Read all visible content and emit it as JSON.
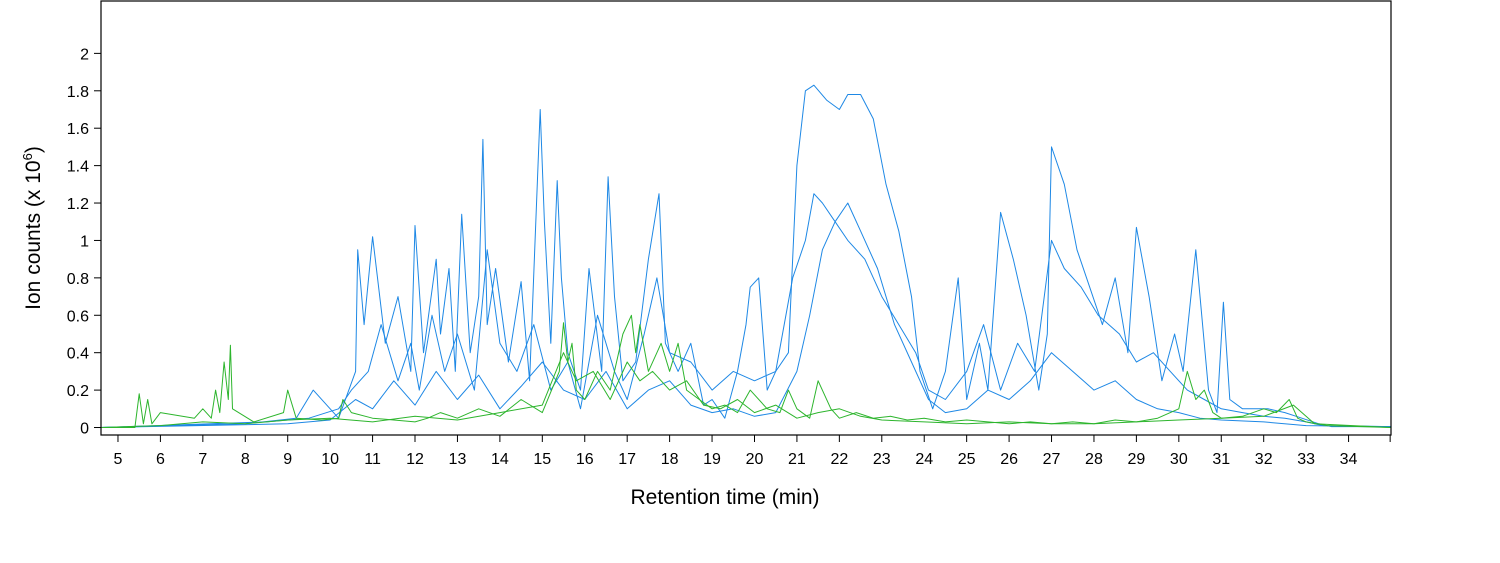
{
  "chart_data": {
    "type": "line",
    "xlabel": "Retention time (min)",
    "ylabel_prefix": "Ion counts (x 10",
    "ylabel_exponent": "6",
    "ylabel_suffix": ")",
    "xlim": [
      4.6,
      35.0
    ],
    "ylim": [
      -0.04,
      2.28
    ],
    "x_ticks": [
      5,
      6,
      7,
      8,
      9,
      10,
      11,
      12,
      13,
      14,
      15,
      16,
      17,
      18,
      19,
      20,
      21,
      22,
      23,
      24,
      25,
      26,
      27,
      28,
      29,
      30,
      31,
      32,
      33,
      34
    ],
    "y_ticks": [
      0,
      0.2,
      0.4,
      0.6,
      0.8,
      1,
      1.2,
      1.4,
      1.6,
      1.8,
      2
    ],
    "y_tick_labels": [
      "0",
      "0.2",
      "0.4",
      "0.6",
      "0.8",
      "1",
      "1.2",
      "1.4",
      "1.6",
      "1.8",
      "2"
    ],
    "grid": false,
    "legend": "none",
    "colors": {
      "blue": "#1e88e5",
      "green": "#2db52d"
    },
    "series": [
      {
        "color": "blue",
        "x": [
          4.6,
          8.0,
          9.2,
          9.6,
          10.2,
          10.6,
          10.65,
          10.8,
          11.0,
          11.3,
          11.6,
          11.9,
          12.0,
          12.2,
          12.5,
          12.6,
          12.8,
          12.95,
          13.1,
          13.3,
          13.5,
          13.6,
          13.7,
          13.9,
          14.2,
          14.5,
          14.7,
          14.95,
          15.05,
          15.2,
          15.35,
          15.45,
          15.6,
          15.9,
          16.1,
          16.4,
          16.55,
          16.7,
          16.9,
          17.2,
          17.5,
          17.75,
          17.9,
          18.2,
          18.5,
          18.8,
          19.0,
          19.3,
          19.6,
          19.8,
          19.9,
          20.1,
          20.3,
          20.5,
          20.8,
          21.0,
          21.2,
          21.4,
          21.7,
          22.0,
          22.2,
          22.5,
          22.8,
          23.1,
          23.4,
          23.7,
          23.9,
          24.2,
          24.5,
          24.8,
          25.0,
          25.3,
          25.5,
          25.8,
          26.1,
          26.4,
          26.7,
          26.9,
          27.0,
          27.3,
          27.6,
          27.9,
          28.2,
          28.5,
          28.8,
          29.0,
          29.3,
          29.6,
          29.9,
          30.1,
          30.4,
          30.7,
          30.9,
          31.05,
          31.2,
          31.5,
          31.8,
          32.1,
          32.5,
          32.9,
          33.3,
          33.6,
          35.0
        ],
        "y": [
          0,
          0.02,
          0.05,
          0.2,
          0.05,
          0.3,
          0.95,
          0.55,
          1.02,
          0.45,
          0.7,
          0.3,
          1.08,
          0.4,
          0.9,
          0.5,
          0.85,
          0.3,
          1.14,
          0.4,
          0.7,
          1.54,
          0.55,
          0.85,
          0.35,
          0.78,
          0.25,
          1.7,
          1.1,
          0.45,
          1.32,
          0.8,
          0.4,
          0.2,
          0.85,
          0.3,
          1.34,
          0.7,
          0.25,
          0.35,
          0.9,
          1.25,
          0.45,
          0.3,
          0.45,
          0.12,
          0.15,
          0.05,
          0.3,
          0.55,
          0.75,
          0.8,
          0.2,
          0.3,
          0.4,
          1.4,
          1.8,
          1.83,
          1.75,
          1.7,
          1.78,
          1.78,
          1.65,
          1.3,
          1.05,
          0.7,
          0.3,
          0.1,
          0.3,
          0.8,
          0.15,
          0.45,
          0.2,
          1.15,
          0.9,
          0.6,
          0.2,
          0.5,
          1.5,
          1.3,
          0.95,
          0.75,
          0.55,
          0.8,
          0.4,
          1.07,
          0.7,
          0.25,
          0.5,
          0.3,
          0.95,
          0.2,
          0.08,
          0.67,
          0.15,
          0.1,
          0.1,
          0.1,
          0.08,
          0.05,
          0.02,
          0.005,
          0.005
        ]
      },
      {
        "color": "blue",
        "x": [
          4.6,
          8.5,
          9.5,
          10.2,
          10.5,
          10.9,
          11.2,
          11.6,
          11.9,
          12.1,
          12.4,
          12.7,
          13.0,
          13.4,
          13.7,
          14.0,
          14.4,
          14.8,
          15.2,
          15.6,
          15.9,
          16.3,
          16.7,
          17.0,
          17.4,
          17.7,
          18.0,
          18.5,
          19.0,
          19.5,
          20.0,
          20.5,
          20.9,
          21.2,
          21.4,
          21.6,
          21.9,
          22.2,
          22.6,
          23.0,
          23.4,
          23.8,
          24.1,
          24.5,
          25.0,
          25.4,
          25.8,
          26.2,
          26.6,
          27.0,
          27.3,
          27.7,
          28.1,
          28.6,
          29.0,
          29.4,
          29.8,
          30.2,
          30.6,
          31.0,
          31.5,
          32.0,
          32.5,
          33.0,
          33.4,
          35.0
        ],
        "y": [
          0,
          0.03,
          0.05,
          0.1,
          0.2,
          0.3,
          0.55,
          0.25,
          0.45,
          0.2,
          0.6,
          0.3,
          0.5,
          0.2,
          0.95,
          0.45,
          0.3,
          0.55,
          0.2,
          0.35,
          0.1,
          0.6,
          0.3,
          0.15,
          0.5,
          0.8,
          0.4,
          0.35,
          0.2,
          0.3,
          0.25,
          0.3,
          0.8,
          1.0,
          1.25,
          1.2,
          1.1,
          1.0,
          0.9,
          0.7,
          0.55,
          0.4,
          0.2,
          0.15,
          0.3,
          0.55,
          0.2,
          0.45,
          0.3,
          1.0,
          0.85,
          0.75,
          0.6,
          0.5,
          0.35,
          0.4,
          0.3,
          0.2,
          0.15,
          0.1,
          0.08,
          0.06,
          0.05,
          0.03,
          0.01,
          0.005
        ]
      },
      {
        "color": "blue",
        "x": [
          4.6,
          9.0,
          10.0,
          10.6,
          11.0,
          11.5,
          12.0,
          12.5,
          13.0,
          13.5,
          14.0,
          14.5,
          15.0,
          15.5,
          16.0,
          16.5,
          17.0,
          17.5,
          18.0,
          18.5,
          19.0,
          19.5,
          20.0,
          20.5,
          21.0,
          21.3,
          21.6,
          21.9,
          22.2,
          22.5,
          22.9,
          23.3,
          23.7,
          24.1,
          24.5,
          25.0,
          25.5,
          26.0,
          26.5,
          27.0,
          27.5,
          28.0,
          28.5,
          29.0,
          29.5,
          30.0,
          30.5,
          31.0,
          32.0,
          33.0,
          35.0
        ],
        "y": [
          0,
          0.02,
          0.04,
          0.15,
          0.1,
          0.25,
          0.12,
          0.3,
          0.15,
          0.28,
          0.1,
          0.22,
          0.35,
          0.2,
          0.15,
          0.3,
          0.1,
          0.2,
          0.25,
          0.12,
          0.08,
          0.1,
          0.06,
          0.08,
          0.3,
          0.6,
          0.95,
          1.1,
          1.2,
          1.05,
          0.85,
          0.55,
          0.35,
          0.15,
          0.08,
          0.1,
          0.2,
          0.15,
          0.25,
          0.4,
          0.3,
          0.2,
          0.25,
          0.15,
          0.1,
          0.08,
          0.05,
          0.04,
          0.03,
          0.01,
          0.005
        ]
      },
      {
        "color": "green",
        "x": [
          4.6,
          5.4,
          5.5,
          5.6,
          5.7,
          5.8,
          6.0,
          6.8,
          7.0,
          7.2,
          7.3,
          7.4,
          7.5,
          7.6,
          7.65,
          7.7,
          8.2,
          8.9,
          9.0,
          9.2,
          9.8,
          10.2,
          10.3,
          10.5,
          11.0,
          12.0,
          12.3,
          12.6,
          13.0,
          13.5,
          14.0,
          14.5,
          15.0,
          15.4,
          15.5,
          15.6,
          15.7,
          15.8,
          16.0,
          16.3,
          16.6,
          16.9,
          17.1,
          17.2,
          17.3,
          17.5,
          17.7,
          17.8,
          18.0,
          18.2,
          18.4,
          18.7,
          19.0,
          19.3,
          19.6,
          19.9,
          20.3,
          20.6,
          20.8,
          21.0,
          21.3,
          21.5,
          21.8,
          22.0,
          22.4,
          22.8,
          23.2,
          23.6,
          24.0,
          24.5,
          25.0,
          25.5,
          26.0,
          26.5,
          27.0,
          27.5,
          28.0,
          28.5,
          29.0,
          29.5,
          30.0,
          30.2,
          30.4,
          30.6,
          30.8,
          31.0,
          31.5,
          32.0,
          32.3,
          32.6,
          32.8,
          33.0,
          33.5,
          35.0
        ],
        "y": [
          0,
          0,
          0.18,
          0.02,
          0.15,
          0.02,
          0.08,
          0.05,
          0.1,
          0.05,
          0.2,
          0.08,
          0.35,
          0.15,
          0.44,
          0.1,
          0.03,
          0.08,
          0.2,
          0.05,
          0.04,
          0.05,
          0.15,
          0.08,
          0.05,
          0.03,
          0.05,
          0.08,
          0.05,
          0.1,
          0.06,
          0.15,
          0.08,
          0.3,
          0.56,
          0.35,
          0.45,
          0.2,
          0.15,
          0.3,
          0.2,
          0.5,
          0.6,
          0.4,
          0.55,
          0.3,
          0.4,
          0.45,
          0.3,
          0.45,
          0.2,
          0.15,
          0.1,
          0.12,
          0.08,
          0.2,
          0.1,
          0.08,
          0.2,
          0.1,
          0.05,
          0.25,
          0.1,
          0.05,
          0.08,
          0.05,
          0.06,
          0.04,
          0.05,
          0.03,
          0.04,
          0.03,
          0.02,
          0.03,
          0.02,
          0.03,
          0.02,
          0.04,
          0.03,
          0.05,
          0.1,
          0.3,
          0.15,
          0.2,
          0.08,
          0.05,
          0.06,
          0.1,
          0.08,
          0.15,
          0.05,
          0.03,
          0.01,
          0.0
        ]
      },
      {
        "color": "green",
        "x": [
          4.6,
          6.0,
          7.0,
          8.0,
          9.0,
          10.0,
          11.0,
          12.0,
          13.0,
          14.0,
          15.0,
          15.5,
          15.8,
          16.2,
          16.6,
          17.0,
          17.3,
          17.6,
          18.0,
          18.4,
          18.8,
          19.2,
          19.6,
          20.0,
          20.5,
          21.0,
          21.5,
          22.0,
          22.5,
          23.0,
          24.0,
          25.0,
          26.0,
          27.0,
          28.0,
          29.0,
          30.0,
          31.0,
          32.0,
          32.7,
          33.2,
          35.0
        ],
        "y": [
          0,
          0.01,
          0.03,
          0.02,
          0.04,
          0.05,
          0.03,
          0.06,
          0.04,
          0.08,
          0.12,
          0.4,
          0.25,
          0.3,
          0.15,
          0.35,
          0.25,
          0.3,
          0.2,
          0.25,
          0.12,
          0.1,
          0.15,
          0.08,
          0.12,
          0.05,
          0.08,
          0.1,
          0.06,
          0.04,
          0.03,
          0.02,
          0.03,
          0.02,
          0.02,
          0.03,
          0.04,
          0.05,
          0.06,
          0.12,
          0.02,
          0.0
        ]
      }
    ]
  }
}
